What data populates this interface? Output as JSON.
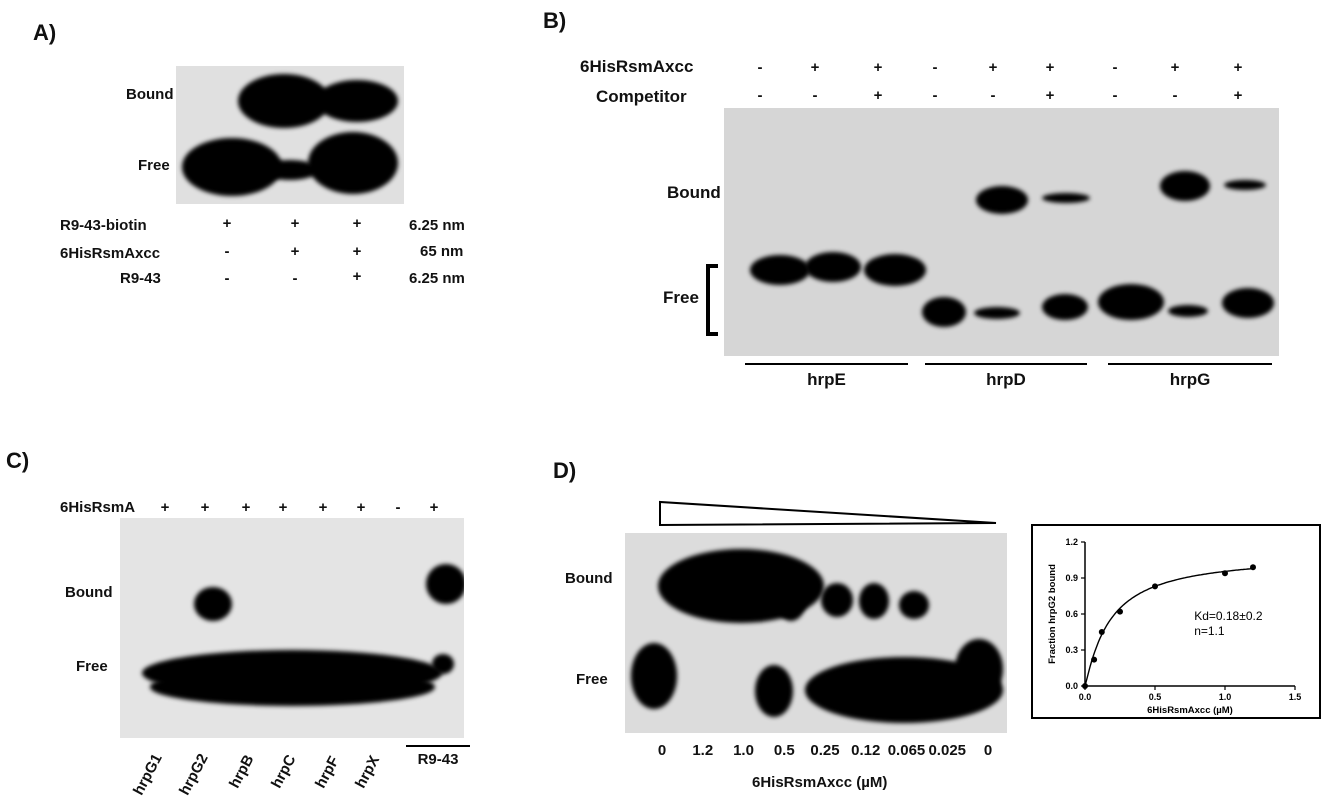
{
  "panelA": {
    "panel_label": "A)",
    "bound_label": "Bound",
    "free_label": "Free",
    "rows": [
      {
        "name": "R9-43-biotin",
        "signs": [
          "+",
          "+",
          "+"
        ],
        "conc": "6.25 nm"
      },
      {
        "name": "6HisRsmAxcc",
        "signs": [
          "-",
          "+",
          "+"
        ],
        "conc": "65 nm"
      },
      {
        "name": "R9-43",
        "signs": [
          "-",
          "-",
          "+"
        ],
        "conc": "6.25 nm"
      }
    ]
  },
  "panelB": {
    "panel_label": "B)",
    "row1_name": "6HisRsmAxcc",
    "row2_name": "Competitor",
    "row1_signs": [
      "-",
      "+",
      "+",
      "-",
      "+",
      "+",
      "-",
      "+",
      "+"
    ],
    "row2_signs": [
      "-",
      "-",
      "+",
      "-",
      "-",
      "+",
      "-",
      "-",
      "+"
    ],
    "bound_label": "Bound",
    "free_label": "Free",
    "groups": [
      "hrpE",
      "hrpD",
      "hrpG"
    ]
  },
  "panelC": {
    "panel_label": "C)",
    "row_name": "6HisRsmA",
    "signs": [
      "+",
      "+",
      "+",
      "+",
      "+",
      "+",
      "-",
      "+"
    ],
    "bound_label": "Bound",
    "free_label": "Free",
    "lanes": [
      "hrpG1",
      "hrpG2",
      "hrpB",
      "hrpC",
      "hrpF",
      "hrpX"
    ],
    "ctrl_label": "R9-43"
  },
  "panelD": {
    "panel_label": "D)",
    "bound_label": "Bound",
    "free_label": "Free",
    "concentrations": [
      "0",
      "1.2",
      "1.0",
      "0.5",
      "0.25",
      "0.12",
      "0.065",
      "0.025",
      "0"
    ],
    "xlabel": "6HisRsmAxcc (µM)",
    "chart_data": {
      "type": "scatter",
      "ylabel": "Fraction hrpG2 bound",
      "xlabel": "6HisRsmAxcc (µM)",
      "xlim": [
        0,
        1.5
      ],
      "ylim": [
        0,
        1.2
      ],
      "xticks": [
        "0.0",
        "0.5",
        "1.0",
        "1.5"
      ],
      "yticks": [
        "0.0",
        "0.3",
        "0.6",
        "0.9",
        "1.2"
      ],
      "points": [
        {
          "x": 0,
          "y": 0
        },
        {
          "x": 0.065,
          "y": 0.22
        },
        {
          "x": 0.12,
          "y": 0.45
        },
        {
          "x": 0.25,
          "y": 0.62
        },
        {
          "x": 0.5,
          "y": 0.83
        },
        {
          "x": 1.0,
          "y": 0.94
        },
        {
          "x": 1.2,
          "y": 0.99
        }
      ],
      "fit": {
        "model": "hill",
        "kd": 0.18,
        "n": 1.1,
        "bmax": 1.1
      },
      "annotation_kd": "Kd=0.18±0.2",
      "annotation_n": "n=1.1"
    }
  }
}
